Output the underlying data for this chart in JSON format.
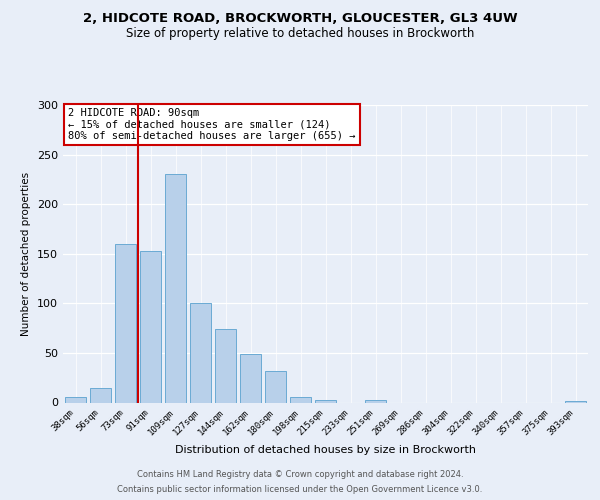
{
  "title_line1": "2, HIDCOTE ROAD, BROCKWORTH, GLOUCESTER, GL3 4UW",
  "title_line2": "Size of property relative to detached houses in Brockworth",
  "xlabel": "Distribution of detached houses by size in Brockworth",
  "ylabel": "Number of detached properties",
  "categories": [
    "38sqm",
    "56sqm",
    "73sqm",
    "91sqm",
    "109sqm",
    "127sqm",
    "144sqm",
    "162sqm",
    "180sqm",
    "198sqm",
    "215sqm",
    "233sqm",
    "251sqm",
    "269sqm",
    "286sqm",
    "304sqm",
    "322sqm",
    "340sqm",
    "357sqm",
    "375sqm",
    "393sqm"
  ],
  "values": [
    6,
    15,
    160,
    153,
    230,
    100,
    74,
    49,
    32,
    6,
    3,
    0,
    3,
    0,
    0,
    0,
    0,
    0,
    0,
    0,
    2
  ],
  "bar_color": "#b8d0ea",
  "bar_edge_color": "#6aaad4",
  "vline_color": "#cc0000",
  "vline_index": 2.5,
  "annotation_text": "2 HIDCOTE ROAD: 90sqm\n← 15% of detached houses are smaller (124)\n80% of semi-detached houses are larger (655) →",
  "annotation_box_facecolor": "#ffffff",
  "annotation_box_edgecolor": "#cc0000",
  "ylim_min": 0,
  "ylim_max": 300,
  "yticks": [
    0,
    50,
    100,
    150,
    200,
    250,
    300
  ],
  "footer_line1": "Contains HM Land Registry data © Crown copyright and database right 2024.",
  "footer_line2": "Contains public sector information licensed under the Open Government Licence v3.0.",
  "bg_color": "#e8eef8",
  "title_fontsize": 9.5,
  "subtitle_fontsize": 8.5,
  "xlabel_fontsize": 8,
  "ylabel_fontsize": 7.5,
  "tick_fontsize": 6.5,
  "footer_fontsize": 6,
  "annotation_fontsize": 7.5
}
